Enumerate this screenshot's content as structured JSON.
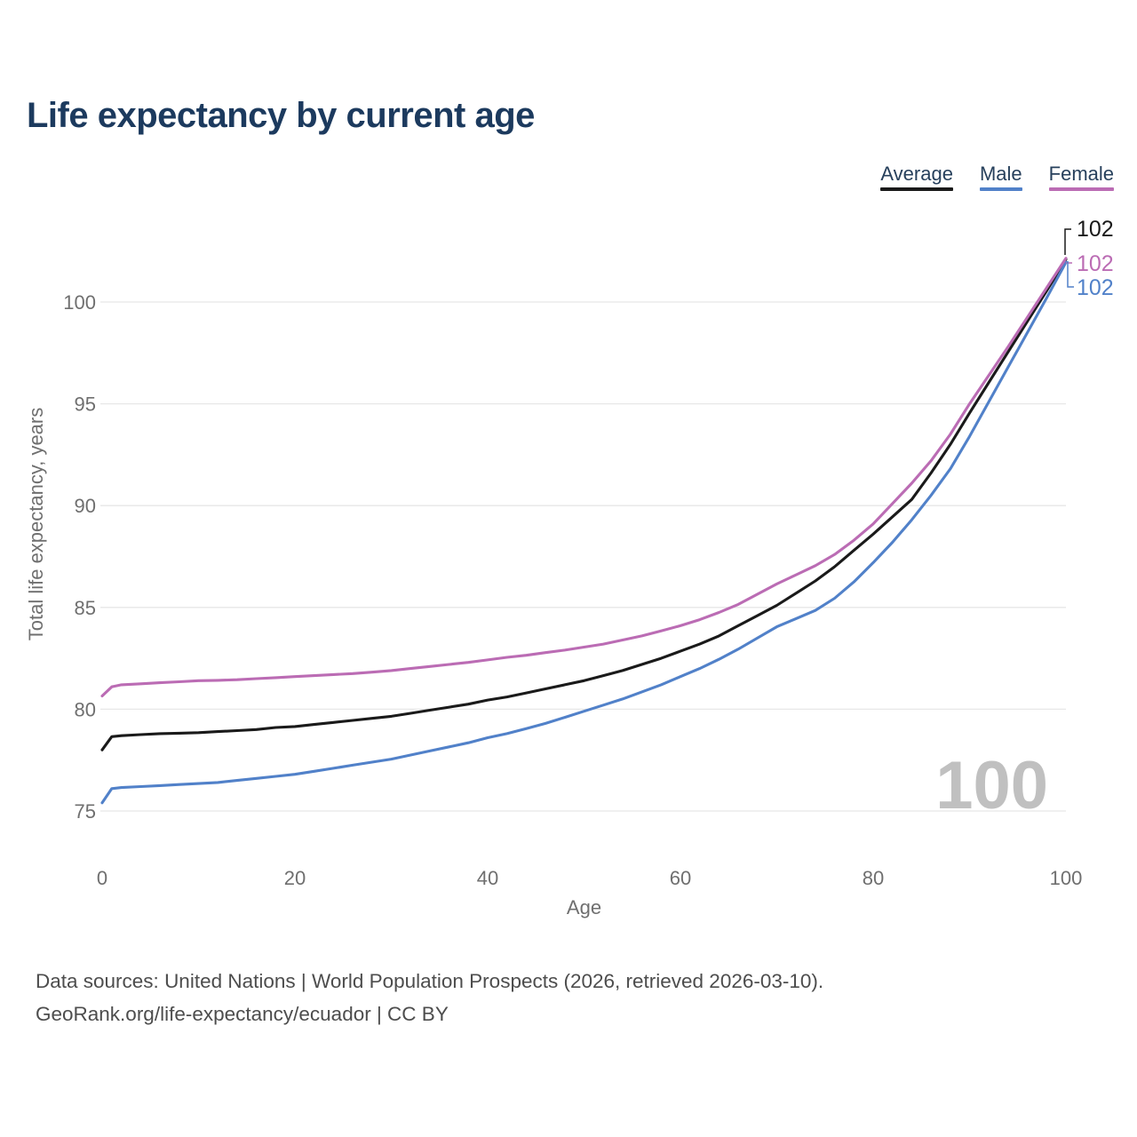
{
  "title": "Life expectancy by current age",
  "legend": [
    {
      "label": "Average",
      "color": "#1a1a1a"
    },
    {
      "label": "Male",
      "color": "#5181c9"
    },
    {
      "label": "Female",
      "color": "#bb6cb4"
    }
  ],
  "watermark": "100",
  "end_labels": [
    {
      "series": "Average",
      "text": "102",
      "color": "#1a1a1a"
    },
    {
      "series": "Female",
      "text": "102",
      "color": "#bb6cb4"
    },
    {
      "series": "Male",
      "text": "102",
      "color": "#5181c9"
    }
  ],
  "footer": {
    "line1": "Data sources: United Nations | World Population Prospects (2026, retrieved 2026-03-10).",
    "line2": "GeoRank.org/life-expectancy/ecuador | CC BY"
  },
  "chart_data": {
    "type": "line",
    "title": "Life expectancy by current age",
    "xlabel": "Age",
    "ylabel": "Total life expectancy, years",
    "x_ticks": [
      0,
      20,
      40,
      60,
      80,
      100
    ],
    "y_ticks": [
      75,
      80,
      85,
      90,
      95,
      100
    ],
    "xlim": [
      0,
      100
    ],
    "ylim": [
      74.5,
      103
    ],
    "grid": "horizontal",
    "legend_position": "top-right",
    "x": [
      0,
      1,
      2,
      4,
      6,
      8,
      10,
      12,
      14,
      16,
      18,
      20,
      22,
      24,
      26,
      28,
      30,
      32,
      34,
      36,
      38,
      40,
      42,
      44,
      46,
      48,
      50,
      52,
      54,
      56,
      58,
      60,
      62,
      64,
      66,
      68,
      70,
      72,
      74,
      76,
      78,
      80,
      82,
      84,
      86,
      88,
      90,
      92,
      94,
      96,
      98,
      100
    ],
    "series": [
      {
        "name": "Average",
        "color": "#1a1a1a",
        "values": [
          78.0,
          78.65,
          78.7,
          78.75,
          78.8,
          78.82,
          78.85,
          78.9,
          78.95,
          79.0,
          79.1,
          79.15,
          79.25,
          79.35,
          79.45,
          79.55,
          79.65,
          79.8,
          79.95,
          80.1,
          80.25,
          80.45,
          80.6,
          80.8,
          81.0,
          81.2,
          81.4,
          81.65,
          81.9,
          82.2,
          82.5,
          82.85,
          83.2,
          83.6,
          84.1,
          84.6,
          85.1,
          85.7,
          86.3,
          87.0,
          87.8,
          88.6,
          89.45,
          90.3,
          91.6,
          93.0,
          94.55,
          96.05,
          97.55,
          99.05,
          100.55,
          102.1
        ]
      },
      {
        "name": "Male",
        "color": "#5181c9",
        "values": [
          75.4,
          76.1,
          76.15,
          76.2,
          76.25,
          76.3,
          76.35,
          76.4,
          76.5,
          76.6,
          76.7,
          76.8,
          76.95,
          77.1,
          77.25,
          77.4,
          77.55,
          77.75,
          77.95,
          78.15,
          78.35,
          78.6,
          78.8,
          79.05,
          79.3,
          79.6,
          79.9,
          80.2,
          80.5,
          80.85,
          81.2,
          81.6,
          82.0,
          82.45,
          82.95,
          83.5,
          84.05,
          84.45,
          84.85,
          85.45,
          86.25,
          87.2,
          88.2,
          89.3,
          90.5,
          91.8,
          93.4,
          95.1,
          96.8,
          98.5,
          100.2,
          101.95
        ]
      },
      {
        "name": "Female",
        "color": "#bb6cb4",
        "values": [
          80.65,
          81.1,
          81.2,
          81.25,
          81.3,
          81.35,
          81.4,
          81.42,
          81.45,
          81.5,
          81.55,
          81.6,
          81.65,
          81.7,
          81.75,
          81.82,
          81.9,
          82.0,
          82.1,
          82.2,
          82.3,
          82.42,
          82.55,
          82.65,
          82.78,
          82.9,
          83.05,
          83.2,
          83.4,
          83.6,
          83.85,
          84.1,
          84.4,
          84.75,
          85.15,
          85.65,
          86.15,
          86.6,
          87.05,
          87.6,
          88.3,
          89.1,
          90.1,
          91.1,
          92.2,
          93.5,
          95.0,
          96.4,
          97.8,
          99.25,
          100.7,
          102.15
        ]
      }
    ]
  }
}
